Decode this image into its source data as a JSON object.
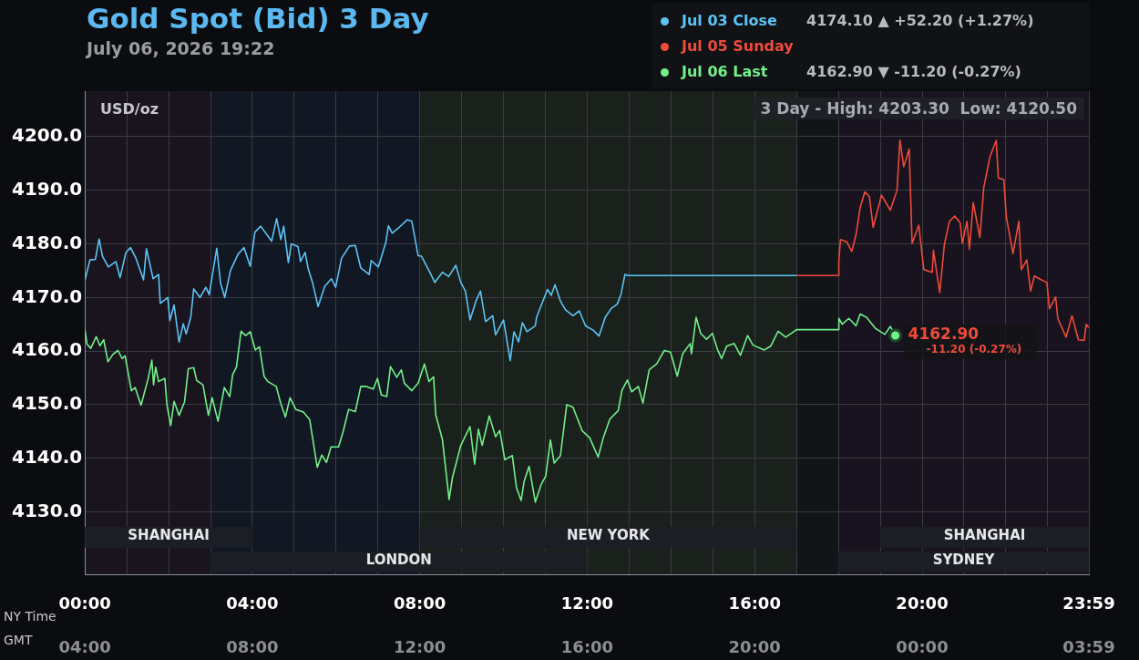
{
  "chart_data": {
    "type": "line",
    "title": "Gold Spot (Bid) 3 Day",
    "subtitle": "July 06, 2026 19:22",
    "ylabel": "USD/oz",
    "xlabel": "NY Time",
    "x2label": "GMT",
    "legend": "top right",
    "grid": true,
    "marker": "none",
    "line_style": "solid",
    "xlim": [
      0,
      23.983
    ],
    "ylim": [
      4118.2,
      4208.5
    ],
    "xticks": [
      {
        "value": 0,
        "label": "00:00"
      },
      {
        "value": 1,
        "label": null
      },
      {
        "value": 2,
        "label": null
      },
      {
        "value": 3,
        "label": null
      },
      {
        "value": 4,
        "label": "04:00"
      },
      {
        "value": 5,
        "label": null
      },
      {
        "value": 6,
        "label": null
      },
      {
        "value": 7,
        "label": null
      },
      {
        "value": 8,
        "label": "08:00"
      },
      {
        "value": 9,
        "label": null
      },
      {
        "value": 10,
        "label": null
      },
      {
        "value": 11,
        "label": null
      },
      {
        "value": 12,
        "label": "12:00"
      },
      {
        "value": 13,
        "label": null
      },
      {
        "value": 14,
        "label": null
      },
      {
        "value": 15,
        "label": null
      },
      {
        "value": 16,
        "label": "16:00"
      },
      {
        "value": 17,
        "label": null
      },
      {
        "value": 18,
        "label": null
      },
      {
        "value": 19,
        "label": null
      },
      {
        "value": 20,
        "label": "20:00"
      },
      {
        "value": 21,
        "label": null
      },
      {
        "value": 22,
        "label": null
      },
      {
        "value": 23,
        "label": null
      },
      {
        "value": 23.983,
        "label": "23:59"
      }
    ],
    "x2lim": [
      "2026-07-06T04:00",
      "2026-07-07T03:59"
    ],
    "x2ticks": [
      {
        "value": "2026-07-06T04:00",
        "label": "04:00"
      },
      {
        "value": "2026-07-06T08:00",
        "label": "08:00"
      },
      {
        "value": "2026-07-06T12:00",
        "label": "12:00"
      },
      {
        "value": "2026-07-06T16:00",
        "label": "16:00"
      },
      {
        "value": "2026-07-06T20:00",
        "label": "20:00"
      },
      {
        "value": "2026-07-07T00:00",
        "label": "00:00"
      },
      {
        "value": "2026-07-07T03:59",
        "label": "03:59"
      }
    ],
    "yticks": [
      {
        "value": 4130,
        "label": "4130.0"
      },
      {
        "value": 4140,
        "label": "4140.0"
      },
      {
        "value": 4150,
        "label": "4150.0"
      },
      {
        "value": 4160,
        "label": "4160.0"
      },
      {
        "value": 4170,
        "label": "4170.0"
      },
      {
        "value": 4180,
        "label": "4180.0"
      },
      {
        "value": 4190,
        "label": "4190.0"
      },
      {
        "value": 4200,
        "label": "4200.0"
      }
    ],
    "bands": [
      {
        "axis": "x",
        "from": 0,
        "to": 3,
        "color": "#1a141e"
      },
      {
        "axis": "x",
        "from": 3,
        "to": 8,
        "color": "#111723"
      },
      {
        "axis": "x",
        "from": 8,
        "to": 17,
        "color": "#1a201b"
      },
      {
        "axis": "x",
        "from": 17,
        "to": 18,
        "color": "#131418"
      },
      {
        "axis": "x",
        "from": 18,
        "to": 23.983,
        "color": "#18131e"
      },
      {
        "axis": "x",
        "from": 0,
        "to": 4,
        "label": "SHANGHAI",
        "color": "#1b1e24"
      },
      {
        "axis": "x",
        "from": 3,
        "to": 12,
        "label": "LONDON",
        "color": "#1b1e24"
      },
      {
        "axis": "x",
        "from": 8,
        "to": 17,
        "label": "NEW YORK",
        "color": "#1b1e24"
      },
      {
        "axis": "x",
        "from": 19,
        "to": 23.983,
        "label": "SHANGHAI",
        "color": "#1b1e24"
      },
      {
        "axis": "x",
        "from": 18,
        "to": 23.983,
        "label": "SYDNEY",
        "color": "#1b1e24"
      }
    ],
    "annotations": [
      "4174.10 ▲ +52.20 (+1.27%)",
      "4162.90 ▼ -11.20 (-0.27%)",
      "3 Day - High: 4203.30  Low: 4120.50",
      {
        "text": "4162.90",
        "x": 19.36,
        "y": 4162.9
      },
      {
        "text": "-11.20 (-0.27%)",
        "x": 19.36,
        "y": 4162.9
      }
    ],
    "series": [
      {
        "name": "Jul 03 Close",
        "color": "#5cc4f5",
        "x": [
          0,
          0.12,
          0.25,
          0.34,
          0.42,
          0.56,
          0.74,
          0.84,
          0.98,
          1.09,
          1.22,
          1.4,
          1.47,
          1.63,
          1.76,
          1.8,
          1.98,
          2.03,
          2.13,
          2.25,
          2.35,
          2.42,
          2.53,
          2.6,
          2.75,
          2.89,
          2.97,
          3.15,
          3.24,
          3.34,
          3.48,
          3.66,
          3.8,
          3.95,
          4.06,
          4.2,
          4.46,
          4.58,
          4.68,
          4.75,
          4.86,
          4.93,
          5.09,
          5.15,
          5.26,
          5.33,
          5.44,
          5.57,
          5.73,
          5.89,
          5.99,
          6.13,
          6.32,
          6.46,
          6.59,
          6.79,
          6.84,
          7.01,
          7.19,
          7.25,
          7.34,
          7.48,
          7.7,
          7.81,
          7.96,
          8.04,
          8.22,
          8.36,
          8.54,
          8.69,
          8.86,
          8.98,
          9.09,
          9.2,
          9.34,
          9.45,
          9.57,
          9.74,
          9.81,
          10,
          10.16,
          10.25,
          10.36,
          10.45,
          10.56,
          10.76,
          10.79,
          11.05,
          11.14,
          11.23,
          11.36,
          11.48,
          11.66,
          11.81,
          11.96,
          12.14,
          12.28,
          12.43,
          12.57,
          12.72,
          12.81,
          12.9,
          12.97,
          17
        ],
        "values": [
          4173.2,
          4177,
          4177.1,
          4180.9,
          4177.7,
          4175.7,
          4176.7,
          4173.7,
          4178.4,
          4179.3,
          4177.3,
          4173.3,
          4179.1,
          4173.5,
          4174.3,
          4168.9,
          4170,
          4165.7,
          4168.6,
          4161.7,
          4165.1,
          4163.2,
          4166.4,
          4171.6,
          4170,
          4171.9,
          4170.5,
          4179.2,
          4172.7,
          4170,
          4175.1,
          4178.1,
          4179.3,
          4175.8,
          4182.2,
          4183.3,
          4180.5,
          4184.7,
          4180.8,
          4183.3,
          4176.5,
          4180,
          4179.5,
          4176.7,
          4178.4,
          4175.5,
          4172.7,
          4168.3,
          4172.1,
          4173.5,
          4171.9,
          4177.3,
          4179.6,
          4179.7,
          4175.5,
          4174.3,
          4176.9,
          4175.7,
          4180.3,
          4183.4,
          4182,
          4182.9,
          4184.5,
          4184.2,
          4177.8,
          4177.7,
          4175,
          4172.8,
          4174.7,
          4173.9,
          4176,
          4172.8,
          4171.2,
          4165.8,
          4169.3,
          4171.2,
          4165.5,
          4166.6,
          4163,
          4165.8,
          4158.2,
          4163.6,
          4161.7,
          4165.3,
          4163.6,
          4164.7,
          4166.3,
          4171.5,
          4170.4,
          4172.4,
          4169.3,
          4167.7,
          4166.6,
          4167.5,
          4164.7,
          4163.9,
          4162.8,
          4166.3,
          4167.9,
          4168.8,
          4170.7,
          4174.3,
          4174.1,
          4174.1
        ]
      },
      {
        "name": "Jul 05 Sunday",
        "color": "#ee4b3b",
        "x": [
          17,
          18,
          18.01,
          18.05,
          18.2,
          18.32,
          18.42,
          18.52,
          18.63,
          18.74,
          18.83,
          19.03,
          19.24,
          19.4,
          19.47,
          19.56,
          19.69,
          19.76,
          19.92,
          20.04,
          20.24,
          20.27,
          20.42,
          20.53,
          20.65,
          20.78,
          20.91,
          20.96,
          21.07,
          21.13,
          21.22,
          21.38,
          21.47,
          21.62,
          21.77,
          21.82,
          21.95,
          22.01,
          22.17,
          22.31,
          22.37,
          22.5,
          22.59,
          22.68,
          22.82,
          22.98,
          23.04,
          23.19,
          23.24,
          23.44,
          23.58,
          23.73,
          23.87,
          23.92,
          23.98
        ],
        "values": [
          4174.1,
          4174.1,
          4176.9,
          4180.8,
          4180.4,
          4178.6,
          4181.7,
          4186.8,
          4189.7,
          4188.8,
          4183.1,
          4189.1,
          4186.3,
          4190,
          4199.4,
          4194.4,
          4197.7,
          4180.1,
          4183.5,
          4175.2,
          4174.7,
          4178.8,
          4170.9,
          4179.8,
          4184.2,
          4185.2,
          4183.9,
          4180.1,
          4184.2,
          4179,
          4187.7,
          4181.2,
          4190.4,
          4196.3,
          4199.3,
          4192.3,
          4192,
          4185.1,
          4178.2,
          4184.2,
          4175.2,
          4177,
          4171.2,
          4174,
          4173.4,
          4172.8,
          4167.9,
          4170.1,
          4166.1,
          4162.6,
          4166.6,
          4162.1,
          4162,
          4165,
          4164.4
        ]
      },
      {
        "name": "Jul 06 Last",
        "color": "#72f08a",
        "x": [
          0,
          0.05,
          0.14,
          0.27,
          0.36,
          0.45,
          0.55,
          0.67,
          0.79,
          0.89,
          0.96,
          1.11,
          1.2,
          1.34,
          1.51,
          1.6,
          1.64,
          1.69,
          1.76,
          1.91,
          1.96,
          2.05,
          2.13,
          2.25,
          2.38,
          2.47,
          2.6,
          2.67,
          2.82,
          2.95,
          3.04,
          3.18,
          3.33,
          3.46,
          3.53,
          3.62,
          3.73,
          3.84,
          3.95,
          4.07,
          4.17,
          4.28,
          4.37,
          4.57,
          4.68,
          4.79,
          4.9,
          5.04,
          5.22,
          5.37,
          5.55,
          5.66,
          5.77,
          5.88,
          6.06,
          6.17,
          6.3,
          6.46,
          6.59,
          6.72,
          6.89,
          6.99,
          7.08,
          7.21,
          7.3,
          7.45,
          7.56,
          7.63,
          7.81,
          7.96,
          8.11,
          8.22,
          8.33,
          8.38,
          8.54,
          8.7,
          8.78,
          8.98,
          9.2,
          9.31,
          9.4,
          9.49,
          9.66,
          9.81,
          9.91,
          10.03,
          10.21,
          10.31,
          10.42,
          10.49,
          10.61,
          10.76,
          10.9,
          11.01,
          11.12,
          11.21,
          11.36,
          11.51,
          11.66,
          11.88,
          12.06,
          12.26,
          12.39,
          12.54,
          12.74,
          12.83,
          12.96,
          13.06,
          13.22,
          13.33,
          13.48,
          13.66,
          13.84,
          13.99,
          14.15,
          14.28,
          14.46,
          14.49,
          14.6,
          14.71,
          14.85,
          14.99,
          15.11,
          15.21,
          15.33,
          15.51,
          15.66,
          15.83,
          15.96,
          16.23,
          16.38,
          16.56,
          16.74,
          16.93,
          17,
          18,
          18.01,
          18.09,
          18.25,
          18.42,
          18.52,
          18.67,
          18.89,
          19.11,
          19.24,
          19.36
        ],
        "values": [
          4164,
          4161.3,
          4160.5,
          4162.7,
          4161,
          4162.1,
          4158,
          4159.4,
          4160.1,
          4158.6,
          4159.1,
          4152.6,
          4153.2,
          4149.9,
          4154.8,
          4158.3,
          4153.7,
          4157,
          4154.3,
          4154.9,
          4149.9,
          4146.1,
          4150.6,
          4148,
          4150.5,
          4156.7,
          4156.9,
          4154.5,
          4153.7,
          4148,
          4151.3,
          4146.9,
          4153.2,
          4151.5,
          4155.6,
          4157,
          4163.7,
          4162.9,
          4163.6,
          4160.2,
          4160.8,
          4155.3,
          4154.3,
          4153.4,
          4150.2,
          4147.7,
          4151.3,
          4149.1,
          4148.6,
          4147.2,
          4138.3,
          4140.6,
          4139.2,
          4142.1,
          4142.1,
          4145,
          4149.1,
          4148.7,
          4153.4,
          4153.4,
          4152.9,
          4154.9,
          4151.8,
          4151.5,
          4157.1,
          4155.1,
          4156.5,
          4154,
          4152.6,
          4154,
          4157.6,
          4154.3,
          4155.2,
          4148.1,
          4143.5,
          4132.3,
          4136.4,
          4142.4,
          4145.9,
          4138.9,
          4145.4,
          4142.4,
          4147.9,
          4144,
          4145.2,
          4139.7,
          4140.5,
          4134.5,
          4132.1,
          4135.6,
          4138.5,
          4131.8,
          4135.1,
          4136.7,
          4143.4,
          4139.1,
          4140.5,
          4150,
          4149.5,
          4145.1,
          4143.8,
          4140.2,
          4144,
          4147.3,
          4148.9,
          4152.7,
          4154.6,
          4152.4,
          4153.4,
          4150.3,
          4156.5,
          4157.6,
          4160.1,
          4159.8,
          4155.3,
          4159.5,
          4161.4,
          4159.5,
          4166.3,
          4163.3,
          4162.2,
          4163.3,
          4160.3,
          4158.6,
          4160.9,
          4161.4,
          4159.2,
          4162.9,
          4161.1,
          4160.2,
          4160.9,
          4163.7,
          4162.6,
          4163.6,
          4164,
          4164,
          4166.1,
          4165,
          4166.1,
          4164.7,
          4166.9,
          4166.3,
          4164.2,
          4163.1,
          4164.6,
          4162.9
        ]
      }
    ]
  }
}
